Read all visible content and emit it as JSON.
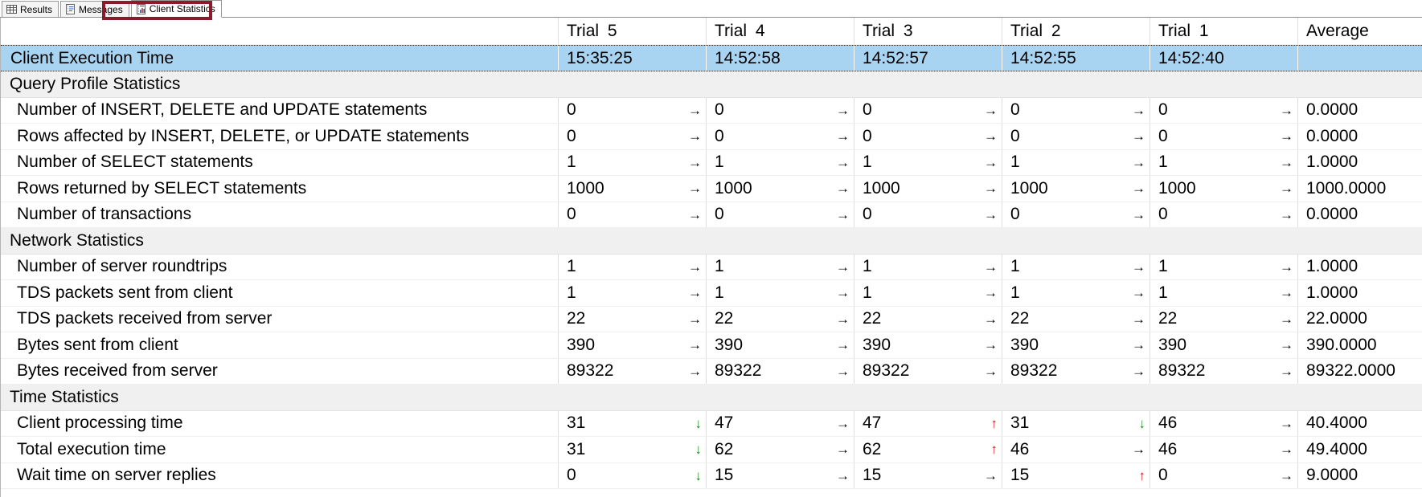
{
  "tabs": {
    "results": {
      "label": "Results"
    },
    "messages": {
      "label": "Messages"
    },
    "client_statistics": {
      "label": "Client Statistics",
      "active": true,
      "annotated": true
    }
  },
  "annotation": {
    "type": "highlight-box",
    "target": "client-statistics-tab",
    "color": "#8c1a2d"
  },
  "icons": {
    "results": "results-grid-icon",
    "messages": "messages-note-icon",
    "client_statistics": "client-statistics-chart-icon",
    "trend_up": "↑",
    "trend_down": "↓",
    "trend_flat": "→"
  },
  "table": {
    "columns": [
      "",
      "Trial 5",
      "Trial 4",
      "Trial 3",
      "Trial 2",
      "Trial 1",
      "Average"
    ],
    "rows": [
      {
        "type": "selected",
        "label": "Client Execution Time",
        "cells": [
          {
            "v": "15:35:25"
          },
          {
            "v": "14:52:58"
          },
          {
            "v": "14:52:57"
          },
          {
            "v": "14:52:55"
          },
          {
            "v": "14:52:40"
          },
          {
            "v": ""
          }
        ]
      },
      {
        "type": "section",
        "label": "Query Profile Statistics"
      },
      {
        "type": "stat",
        "label": "Number of INSERT, DELETE and UPDATE statements",
        "cells": [
          {
            "v": "0",
            "arrow": "right"
          },
          {
            "v": "0",
            "arrow": "right"
          },
          {
            "v": "0",
            "arrow": "right"
          },
          {
            "v": "0",
            "arrow": "right"
          },
          {
            "v": "0",
            "arrow": "right"
          },
          {
            "v": "0.0000"
          }
        ]
      },
      {
        "type": "stat",
        "label": "Rows affected by INSERT, DELETE, or UPDATE statements",
        "cells": [
          {
            "v": "0",
            "arrow": "right"
          },
          {
            "v": "0",
            "arrow": "right"
          },
          {
            "v": "0",
            "arrow": "right"
          },
          {
            "v": "0",
            "arrow": "right"
          },
          {
            "v": "0",
            "arrow": "right"
          },
          {
            "v": "0.0000"
          }
        ]
      },
      {
        "type": "stat",
        "label": "Number of SELECT statements",
        "cells": [
          {
            "v": "1",
            "arrow": "right"
          },
          {
            "v": "1",
            "arrow": "right"
          },
          {
            "v": "1",
            "arrow": "right"
          },
          {
            "v": "1",
            "arrow": "right"
          },
          {
            "v": "1",
            "arrow": "right"
          },
          {
            "v": "1.0000"
          }
        ]
      },
      {
        "type": "stat",
        "label": "Rows returned by SELECT statements",
        "cells": [
          {
            "v": "1000",
            "arrow": "right"
          },
          {
            "v": "1000",
            "arrow": "right"
          },
          {
            "v": "1000",
            "arrow": "right"
          },
          {
            "v": "1000",
            "arrow": "right"
          },
          {
            "v": "1000",
            "arrow": "right"
          },
          {
            "v": "1000.0000"
          }
        ]
      },
      {
        "type": "stat",
        "label": "Number of transactions",
        "cells": [
          {
            "v": "0",
            "arrow": "right"
          },
          {
            "v": "0",
            "arrow": "right"
          },
          {
            "v": "0",
            "arrow": "right"
          },
          {
            "v": "0",
            "arrow": "right"
          },
          {
            "v": "0",
            "arrow": "right"
          },
          {
            "v": "0.0000"
          }
        ]
      },
      {
        "type": "section",
        "label": "Network Statistics"
      },
      {
        "type": "stat",
        "label": "Number of server roundtrips",
        "cells": [
          {
            "v": "1",
            "arrow": "right"
          },
          {
            "v": "1",
            "arrow": "right"
          },
          {
            "v": "1",
            "arrow": "right"
          },
          {
            "v": "1",
            "arrow": "right"
          },
          {
            "v": "1",
            "arrow": "right"
          },
          {
            "v": "1.0000"
          }
        ]
      },
      {
        "type": "stat",
        "label": "TDS packets sent from client",
        "cells": [
          {
            "v": "1",
            "arrow": "right"
          },
          {
            "v": "1",
            "arrow": "right"
          },
          {
            "v": "1",
            "arrow": "right"
          },
          {
            "v": "1",
            "arrow": "right"
          },
          {
            "v": "1",
            "arrow": "right"
          },
          {
            "v": "1.0000"
          }
        ]
      },
      {
        "type": "stat",
        "label": "TDS packets received from server",
        "cells": [
          {
            "v": "22",
            "arrow": "right"
          },
          {
            "v": "22",
            "arrow": "right"
          },
          {
            "v": "22",
            "arrow": "right"
          },
          {
            "v": "22",
            "arrow": "right"
          },
          {
            "v": "22",
            "arrow": "right"
          },
          {
            "v": "22.0000"
          }
        ]
      },
      {
        "type": "stat",
        "label": "Bytes sent from client",
        "cells": [
          {
            "v": "390",
            "arrow": "right"
          },
          {
            "v": "390",
            "arrow": "right"
          },
          {
            "v": "390",
            "arrow": "right"
          },
          {
            "v": "390",
            "arrow": "right"
          },
          {
            "v": "390",
            "arrow": "right"
          },
          {
            "v": "390.0000"
          }
        ]
      },
      {
        "type": "stat",
        "label": "Bytes received from server",
        "cells": [
          {
            "v": "89322",
            "arrow": "right"
          },
          {
            "v": "89322",
            "arrow": "right"
          },
          {
            "v": "89322",
            "arrow": "right"
          },
          {
            "v": "89322",
            "arrow": "right"
          },
          {
            "v": "89322",
            "arrow": "right"
          },
          {
            "v": "89322.0000"
          }
        ]
      },
      {
        "type": "section",
        "label": "Time Statistics"
      },
      {
        "type": "stat",
        "label": "Client processing time",
        "cells": [
          {
            "v": "31",
            "arrow": "down"
          },
          {
            "v": "47",
            "arrow": "right"
          },
          {
            "v": "47",
            "arrow": "up"
          },
          {
            "v": "31",
            "arrow": "down"
          },
          {
            "v": "46",
            "arrow": "right"
          },
          {
            "v": "40.4000"
          }
        ]
      },
      {
        "type": "stat",
        "label": "Total execution time",
        "cells": [
          {
            "v": "31",
            "arrow": "down"
          },
          {
            "v": "62",
            "arrow": "right"
          },
          {
            "v": "62",
            "arrow": "up"
          },
          {
            "v": "46",
            "arrow": "right"
          },
          {
            "v": "46",
            "arrow": "right"
          },
          {
            "v": "49.4000"
          }
        ]
      },
      {
        "type": "stat",
        "label": "Wait time on server replies",
        "cells": [
          {
            "v": "0",
            "arrow": "down"
          },
          {
            "v": "15",
            "arrow": "right"
          },
          {
            "v": "15",
            "arrow": "right"
          },
          {
            "v": "15",
            "arrow": "up"
          },
          {
            "v": "0",
            "arrow": "right"
          },
          {
            "v": "9.0000"
          }
        ]
      }
    ]
  },
  "colors": {
    "selection_blue": "#a9d4f1",
    "section_gray": "#f0f0f0",
    "highlight_box_maroon": "#8c1a2d",
    "arrow_up_red": "#d41414",
    "arrow_down_green": "#1d8a1d",
    "arrow_neutral_black": "#000000"
  }
}
